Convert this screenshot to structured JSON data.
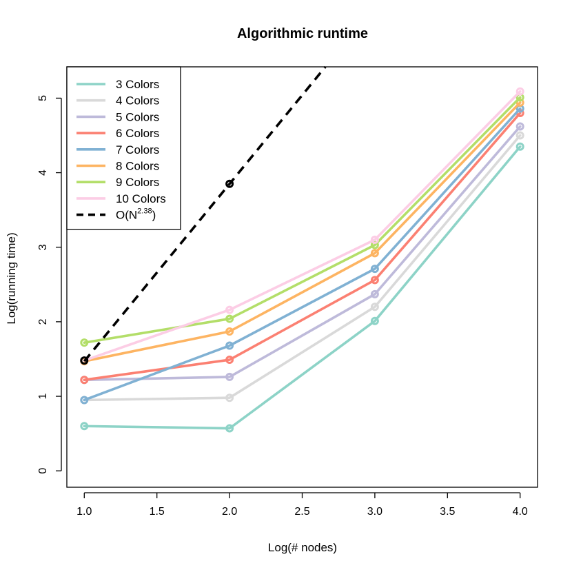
{
  "chart_data": {
    "type": "line",
    "title": "Algorithmic runtime",
    "xlabel": "Log(# nodes)",
    "ylabel": "Log(running time)",
    "x": [
      1,
      2,
      3,
      4
    ],
    "xlim": [
      0.88,
      4.12
    ],
    "ylim": [
      -0.22,
      5.42
    ],
    "xticks": [
      1.0,
      1.5,
      2.0,
      2.5,
      3.0,
      3.5,
      4.0
    ],
    "xtick_labels": [
      "1.0",
      "1.5",
      "2.0",
      "2.5",
      "3.0",
      "3.5",
      "4.0"
    ],
    "yticks": [
      0,
      1,
      2,
      3,
      4,
      5
    ],
    "ytick_labels": [
      "0",
      "1",
      "2",
      "3",
      "4",
      "5"
    ],
    "legend_position": "top-left",
    "series": [
      {
        "name": "3 Colors",
        "color": "#8dd3c7",
        "values": [
          0.6,
          0.57,
          2.01,
          4.35
        ]
      },
      {
        "name": "4 Colors",
        "color": "#d9d9d9",
        "values": [
          0.95,
          0.98,
          2.2,
          4.5
        ]
      },
      {
        "name": "5 Colors",
        "color": "#bebada",
        "values": [
          1.22,
          1.26,
          2.37,
          4.62
        ]
      },
      {
        "name": "6 Colors",
        "color": "#fb8072",
        "values": [
          1.22,
          1.49,
          2.56,
          4.8
        ]
      },
      {
        "name": "7 Colors",
        "color": "#80b1d3",
        "values": [
          0.95,
          1.68,
          2.71,
          4.86
        ]
      },
      {
        "name": "8 Colors",
        "color": "#fdb462",
        "values": [
          1.47,
          1.87,
          2.92,
          4.94
        ]
      },
      {
        "name": "9 Colors",
        "color": "#b3de69",
        "values": [
          1.72,
          2.04,
          3.03,
          5.01
        ]
      },
      {
        "name": "10 Colors",
        "color": "#fccde5",
        "values": [
          1.48,
          2.16,
          3.1,
          5.09
        ]
      }
    ],
    "reference": {
      "name_prefix": "O(N",
      "name_exponent": "2.38",
      "name_suffix": ")",
      "color": "#000000",
      "style": "dashed",
      "exponent": 2.38,
      "intercept": 1.47,
      "x": [
        1,
        2
      ],
      "values": [
        1.48,
        3.85
      ]
    }
  }
}
